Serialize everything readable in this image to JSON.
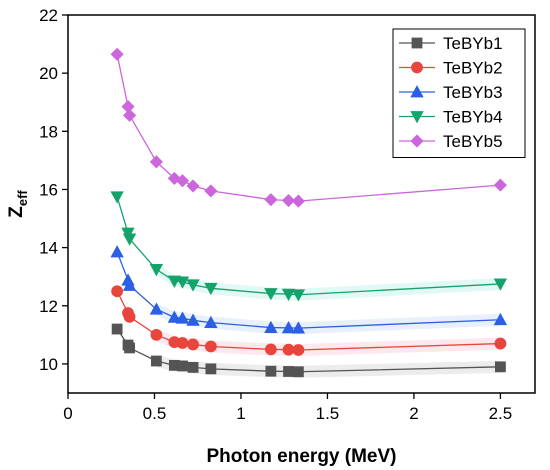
{
  "chart_data": {
    "type": "line",
    "title": "",
    "xlabel": "Photon energy (MeV)",
    "ylabel": "Z",
    "ylabel_sub": "eff",
    "xlim": [
      0,
      2.7
    ],
    "ylim": [
      9,
      22
    ],
    "xticks": [
      "0",
      "0.5",
      "1",
      "1.5",
      "2",
      "2.5"
    ],
    "xtick_values": [
      0,
      0.5,
      1,
      1.5,
      2,
      2.5
    ],
    "yticks": [
      "10",
      "12",
      "14",
      "16",
      "18",
      "20",
      "22"
    ],
    "ytick_values": [
      10,
      12,
      14,
      16,
      18,
      20,
      22
    ],
    "grid": false,
    "legend_position": "top-right",
    "x": [
      0.284,
      0.347,
      0.356,
      0.511,
      0.615,
      0.662,
      0.723,
      0.826,
      1.173,
      1.275,
      1.332,
      2.5
    ],
    "series": [
      {
        "name": "TeBYb1",
        "color": "#545454",
        "marker": "square",
        "values": [
          11.2,
          10.65,
          10.55,
          10.1,
          9.95,
          9.93,
          9.88,
          9.83,
          9.75,
          9.74,
          9.73,
          9.9
        ]
      },
      {
        "name": "TeBYb2",
        "color": "#e8453c",
        "marker": "circle",
        "values": [
          12.5,
          11.75,
          11.62,
          11.0,
          10.75,
          10.72,
          10.67,
          10.6,
          10.5,
          10.49,
          10.48,
          10.7
        ]
      },
      {
        "name": "TeBYb3",
        "color": "#2a5fe6",
        "marker": "triangle-up",
        "values": [
          13.85,
          12.88,
          12.7,
          11.88,
          11.6,
          11.57,
          11.5,
          11.42,
          11.25,
          11.24,
          11.23,
          11.52
        ]
      },
      {
        "name": "TeBYb4",
        "color": "#16a36b",
        "marker": "triangle-down",
        "values": [
          15.75,
          14.5,
          14.3,
          13.25,
          12.85,
          12.82,
          12.72,
          12.6,
          12.42,
          12.4,
          12.38,
          12.75
        ]
      },
      {
        "name": "TeBYb5",
        "color": "#cc66dd",
        "marker": "diamond",
        "values": [
          20.65,
          18.85,
          18.55,
          16.95,
          16.38,
          16.3,
          16.12,
          15.95,
          15.65,
          15.62,
          15.6,
          16.15
        ]
      }
    ]
  }
}
